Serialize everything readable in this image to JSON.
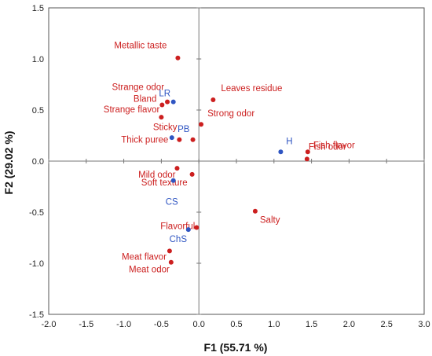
{
  "chart_data": {
    "type": "scatter",
    "xlabel": "F1 (55.71 %)",
    "ylabel": "F2 (29.02 %)",
    "xlim": [
      -2.0,
      3.0
    ],
    "ylim": [
      -1.5,
      1.5
    ],
    "x_ticks": [
      "-2.0",
      "-1.5",
      "-1.0",
      "-0.5",
      "0.0",
      "0.5",
      "1.0",
      "1.5",
      "2.0",
      "2.5",
      "3.0"
    ],
    "y_ticks": [
      "1.5",
      "1.0",
      "0.5",
      "0.0",
      "-0.5",
      "-1.0",
      "-1.5"
    ],
    "grid": false,
    "colors": {
      "variables": "#cc1f1f",
      "observations": "#2f55c2"
    },
    "series": [
      {
        "points": [
          {
            "label": "Metallic taste",
            "x": -0.28,
            "y": 1.01
          },
          {
            "label": "Strange odor",
            "x": -0.42,
            "y": 0.58
          },
          {
            "label": "Bland",
            "x": -0.49,
            "y": 0.55
          },
          {
            "label": "Strange flavor",
            "x": -0.5,
            "y": 0.43
          },
          {
            "label": "Leaves residue",
            "x": 0.19,
            "y": 0.6
          },
          {
            "label": "Strong odor",
            "x": 0.03,
            "y": 0.36
          },
          {
            "label": "Sticky",
            "x": -0.08,
            "y": 0.21
          },
          {
            "label": "Thick puree",
            "x": -0.26,
            "y": 0.21
          },
          {
            "label": "Fish flavor",
            "x": 1.45,
            "y": 0.09
          },
          {
            "label": "Fish odor",
            "x": 1.44,
            "y": 0.02
          },
          {
            "label": "Mild odor",
            "x": -0.29,
            "y": -0.07
          },
          {
            "label": "Soft texture",
            "x": -0.09,
            "y": -0.13
          },
          {
            "label": "Salty",
            "x": 0.75,
            "y": -0.49
          },
          {
            "label": "Flavorful",
            "x": -0.03,
            "y": -0.65
          },
          {
            "label": "Meat flavor",
            "x": -0.39,
            "y": -0.88
          },
          {
            "label": "Meat odor",
            "x": -0.37,
            "y": -0.99
          }
        ]
      },
      {
        "points": [
          {
            "label": "LR",
            "x": -0.34,
            "y": 0.58
          },
          {
            "label": "PB",
            "x": -0.36,
            "y": 0.23
          },
          {
            "label": "H",
            "x": 1.09,
            "y": 0.09
          },
          {
            "label": "CS",
            "x": -0.34,
            "y": -0.19
          },
          {
            "label": "ChS",
            "x": -0.14,
            "y": -0.67
          }
        ]
      }
    ]
  }
}
